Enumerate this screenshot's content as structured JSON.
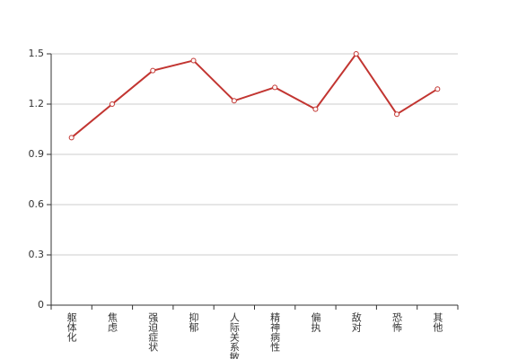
{
  "chart_data": {
    "type": "line",
    "categories": [
      "躯体化",
      "焦虑",
      "强迫症状",
      "抑郁",
      "人际关系敏感",
      "精神病性",
      "偏执",
      "敌对",
      "恐怖",
      "其他"
    ],
    "values": [
      1.0,
      1.2,
      1.4,
      1.46,
      1.22,
      1.3,
      1.17,
      1.5,
      1.14,
      1.29
    ],
    "color": "#c23531",
    "ylim": [
      0,
      1.5
    ],
    "yticks": [
      0,
      0.3,
      0.6,
      0.9,
      1.2,
      1.5
    ],
    "grid": true
  }
}
